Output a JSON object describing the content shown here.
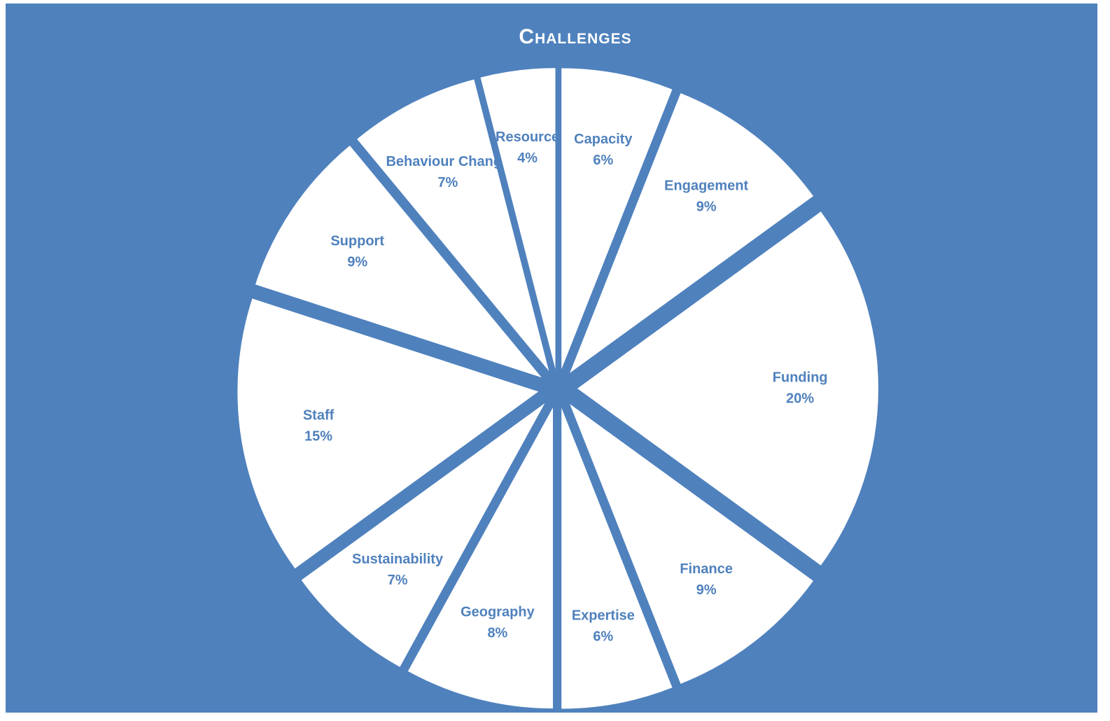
{
  "chart_data": {
    "type": "pie",
    "title": "Challenges",
    "categories": [
      "Capacity",
      "Engagement",
      "Funding",
      "Finance",
      "Expertise",
      "Geography",
      "Sustainability",
      "Staff",
      "Support",
      "Behaviour Change",
      "Resource"
    ],
    "values": [
      6,
      9,
      20,
      9,
      6,
      8,
      7,
      15,
      9,
      7,
      4
    ],
    "value_labels": [
      "6%",
      "9%",
      "20%",
      "9%",
      "6%",
      "8%",
      "7%",
      "15%",
      "9%",
      "7%",
      "4%"
    ],
    "color": "#ffffff",
    "background": "#4f81bd",
    "exploded": true
  }
}
